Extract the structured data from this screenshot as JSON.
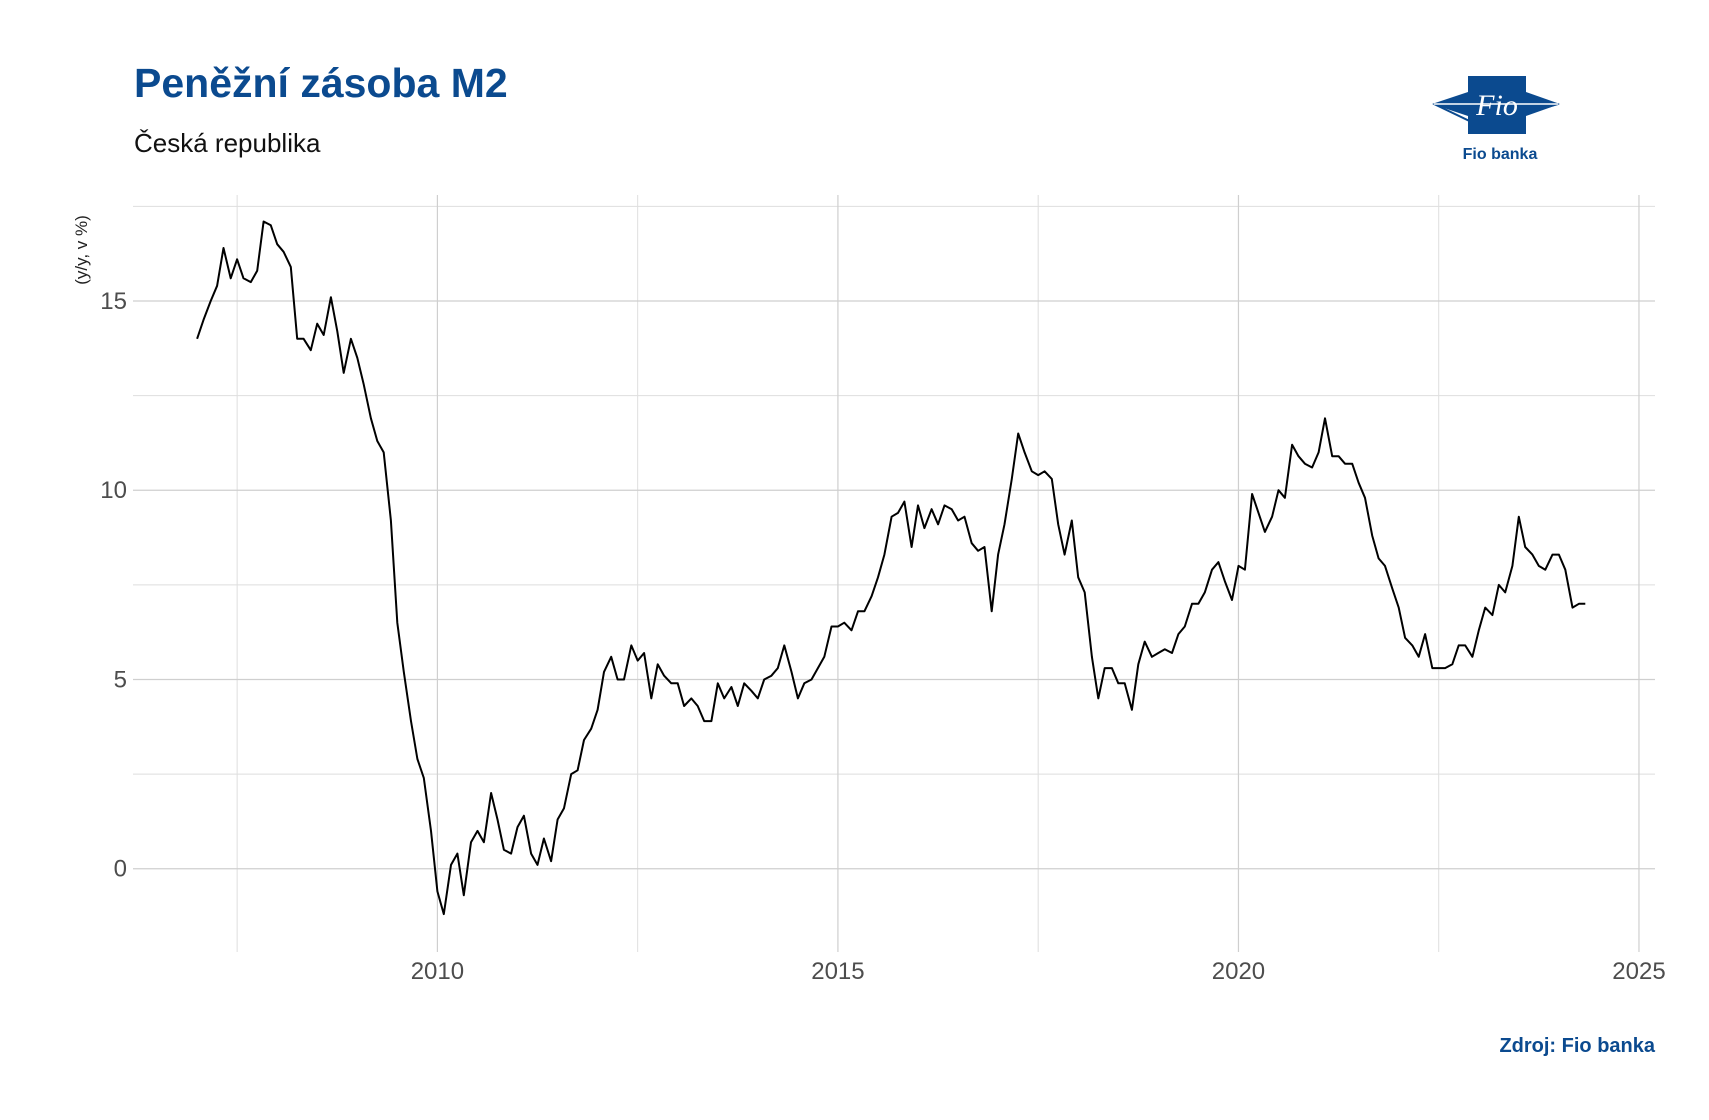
{
  "header": {
    "title": "Peněžní zásoba M2",
    "subtitle": "Česká republika"
  },
  "logo": {
    "mark_text": "Fio",
    "caption": "Fio banka",
    "color": "#0b4a8f"
  },
  "footer": {
    "source": "Zdroj: Fio banka"
  },
  "chart_data": {
    "type": "line",
    "title": "Peněžní zásoba M2",
    "subtitle": "Česká republika",
    "ylabel": "(y/y, v %)",
    "xlabel": "",
    "xlim": [
      2006.2,
      2025.2
    ],
    "ylim": [
      -2.2,
      17.8
    ],
    "x_ticks": [
      2010,
      2015,
      2020,
      2025
    ],
    "x_tick_labels": [
      "2010",
      "2015",
      "2020",
      "2025"
    ],
    "y_ticks": [
      0,
      5,
      10,
      15
    ],
    "y_tick_labels": [
      "0",
      "5",
      "10",
      "15"
    ],
    "x_minor_grid": [
      2007.5,
      2012.5,
      2017.5,
      2022.5
    ],
    "y_minor_grid": [
      -2.5,
      2.5,
      7.5,
      12.5,
      17.5
    ],
    "grid": true,
    "line_color": "#000000",
    "series": [
      {
        "x": [
          2007.0,
          2007.08,
          2007.17,
          2007.25,
          2007.33,
          2007.42,
          2007.5,
          2007.58,
          2007.67,
          2007.75,
          2007.83,
          2007.92,
          2008.0,
          2008.08,
          2008.17,
          2008.25,
          2008.33,
          2008.42,
          2008.5,
          2008.58,
          2008.67,
          2008.75,
          2008.83,
          2008.92,
          2009.0,
          2009.08,
          2009.17,
          2009.25,
          2009.33,
          2009.42,
          2009.5,
          2009.58,
          2009.67,
          2009.75,
          2009.83,
          2009.92,
          2010.0,
          2010.08,
          2010.17,
          2010.25,
          2010.33,
          2010.42,
          2010.5,
          2010.58,
          2010.67,
          2010.75,
          2010.83,
          2010.92,
          2011.0,
          2011.08,
          2011.17,
          2011.25,
          2011.33,
          2011.42,
          2011.5,
          2011.58,
          2011.67,
          2011.75,
          2011.83,
          2011.92,
          2012.0,
          2012.08,
          2012.17,
          2012.25,
          2012.33,
          2012.42,
          2012.5,
          2012.58,
          2012.67,
          2012.75,
          2012.83,
          2012.92,
          2013.0,
          2013.08,
          2013.17,
          2013.25,
          2013.33,
          2013.42,
          2013.5,
          2013.58,
          2013.67,
          2013.75,
          2013.83,
          2013.92,
          2014.0,
          2014.08,
          2014.17,
          2014.25,
          2014.33,
          2014.42,
          2014.5,
          2014.58,
          2014.67,
          2014.75,
          2014.83,
          2014.92,
          2015.0,
          2015.08,
          2015.17,
          2015.25,
          2015.33,
          2015.42,
          2015.5,
          2015.58,
          2015.67,
          2015.75,
          2015.83,
          2015.92,
          2016.0,
          2016.08,
          2016.17,
          2016.25,
          2016.33,
          2016.42,
          2016.5,
          2016.58,
          2016.67,
          2016.75,
          2016.83,
          2016.92,
          2017.0,
          2017.08,
          2017.17,
          2017.25,
          2017.33,
          2017.42,
          2017.5,
          2017.58,
          2017.67,
          2017.75,
          2017.83,
          2017.92,
          2018.0,
          2018.08,
          2018.17,
          2018.25,
          2018.33,
          2018.42,
          2018.5,
          2018.58,
          2018.67,
          2018.75,
          2018.83,
          2018.92,
          2019.0,
          2019.08,
          2019.17,
          2019.25,
          2019.33,
          2019.42,
          2019.5,
          2019.58,
          2019.67,
          2019.75,
          2019.83,
          2019.92,
          2020.0,
          2020.08,
          2020.17,
          2020.25,
          2020.33,
          2020.42,
          2020.5,
          2020.58,
          2020.67,
          2020.75,
          2020.83,
          2020.92,
          2021.0,
          2021.08,
          2021.17,
          2021.25,
          2021.33,
          2021.42,
          2021.5,
          2021.58,
          2021.67,
          2021.75,
          2021.83,
          2021.92,
          2022.0,
          2022.08,
          2022.17,
          2022.25,
          2022.33,
          2022.42,
          2022.5,
          2022.58,
          2022.67,
          2022.75,
          2022.83,
          2022.92,
          2023.0,
          2023.08,
          2023.17,
          2023.25,
          2023.33,
          2023.42,
          2023.5,
          2023.58,
          2023.67,
          2023.75,
          2023.83,
          2023.92,
          2024.0,
          2024.08,
          2024.17,
          2024.25,
          2024.33
        ],
        "y": [
          14.0,
          14.5,
          15.0,
          15.4,
          16.4,
          15.6,
          16.1,
          15.6,
          15.5,
          15.8,
          17.1,
          17.0,
          16.5,
          16.3,
          15.9,
          14.0,
          14.0,
          13.7,
          14.4,
          14.1,
          15.1,
          14.2,
          13.1,
          14.0,
          13.5,
          12.8,
          11.9,
          11.3,
          11.0,
          9.2,
          6.5,
          5.2,
          3.9,
          2.9,
          2.4,
          1.0,
          -0.6,
          -1.2,
          0.1,
          0.4,
          -0.7,
          0.7,
          1.0,
          0.7,
          2.0,
          1.3,
          0.5,
          0.4,
          1.1,
          1.4,
          0.4,
          0.1,
          0.8,
          0.2,
          1.3,
          1.6,
          2.5,
          2.6,
          3.4,
          3.7,
          4.2,
          5.2,
          5.6,
          5.0,
          5.0,
          5.9,
          5.5,
          5.7,
          4.5,
          5.4,
          5.1,
          4.9,
          4.9,
          4.3,
          4.5,
          4.3,
          3.9,
          3.9,
          4.9,
          4.5,
          4.8,
          4.3,
          4.9,
          4.7,
          4.5,
          5.0,
          5.1,
          5.3,
          5.9,
          5.2,
          4.5,
          4.9,
          5.0,
          5.3,
          5.6,
          6.4,
          6.4,
          6.5,
          6.3,
          6.8,
          6.8,
          7.2,
          7.7,
          8.3,
          9.3,
          9.4,
          9.7,
          8.5,
          9.6,
          9.0,
          9.5,
          9.1,
          9.6,
          9.5,
          9.2,
          9.3,
          8.6,
          8.4,
          8.5,
          6.8,
          8.3,
          9.1,
          10.3,
          11.5,
          11.0,
          10.5,
          10.4,
          10.5,
          10.3,
          9.1,
          8.3,
          9.2,
          7.7,
          7.3,
          5.6,
          4.5,
          5.3,
          5.3,
          4.9,
          4.9,
          4.2,
          5.4,
          6.0,
          5.6,
          5.7,
          5.8,
          5.7,
          6.2,
          6.4,
          7.0,
          7.0,
          7.3,
          7.9,
          8.1,
          7.6,
          7.1,
          8.0,
          7.9,
          9.9,
          9.4,
          8.9,
          9.3,
          10.0,
          9.8,
          11.2,
          10.9,
          10.7,
          10.6,
          11.0,
          11.9,
          10.9,
          10.9,
          10.7,
          10.7,
          10.2,
          9.8,
          8.8,
          8.2,
          8.0,
          7.4,
          6.9,
          6.1,
          5.9,
          5.6,
          6.2,
          5.3,
          5.3,
          5.3,
          5.4,
          5.9,
          5.9,
          5.6,
          6.3,
          6.9,
          6.7,
          7.5,
          7.3,
          8.0,
          9.3,
          8.5,
          8.3,
          8.0,
          7.9,
          8.3,
          8.3,
          7.9,
          6.9,
          7.0,
          7.0
        ]
      }
    ]
  }
}
